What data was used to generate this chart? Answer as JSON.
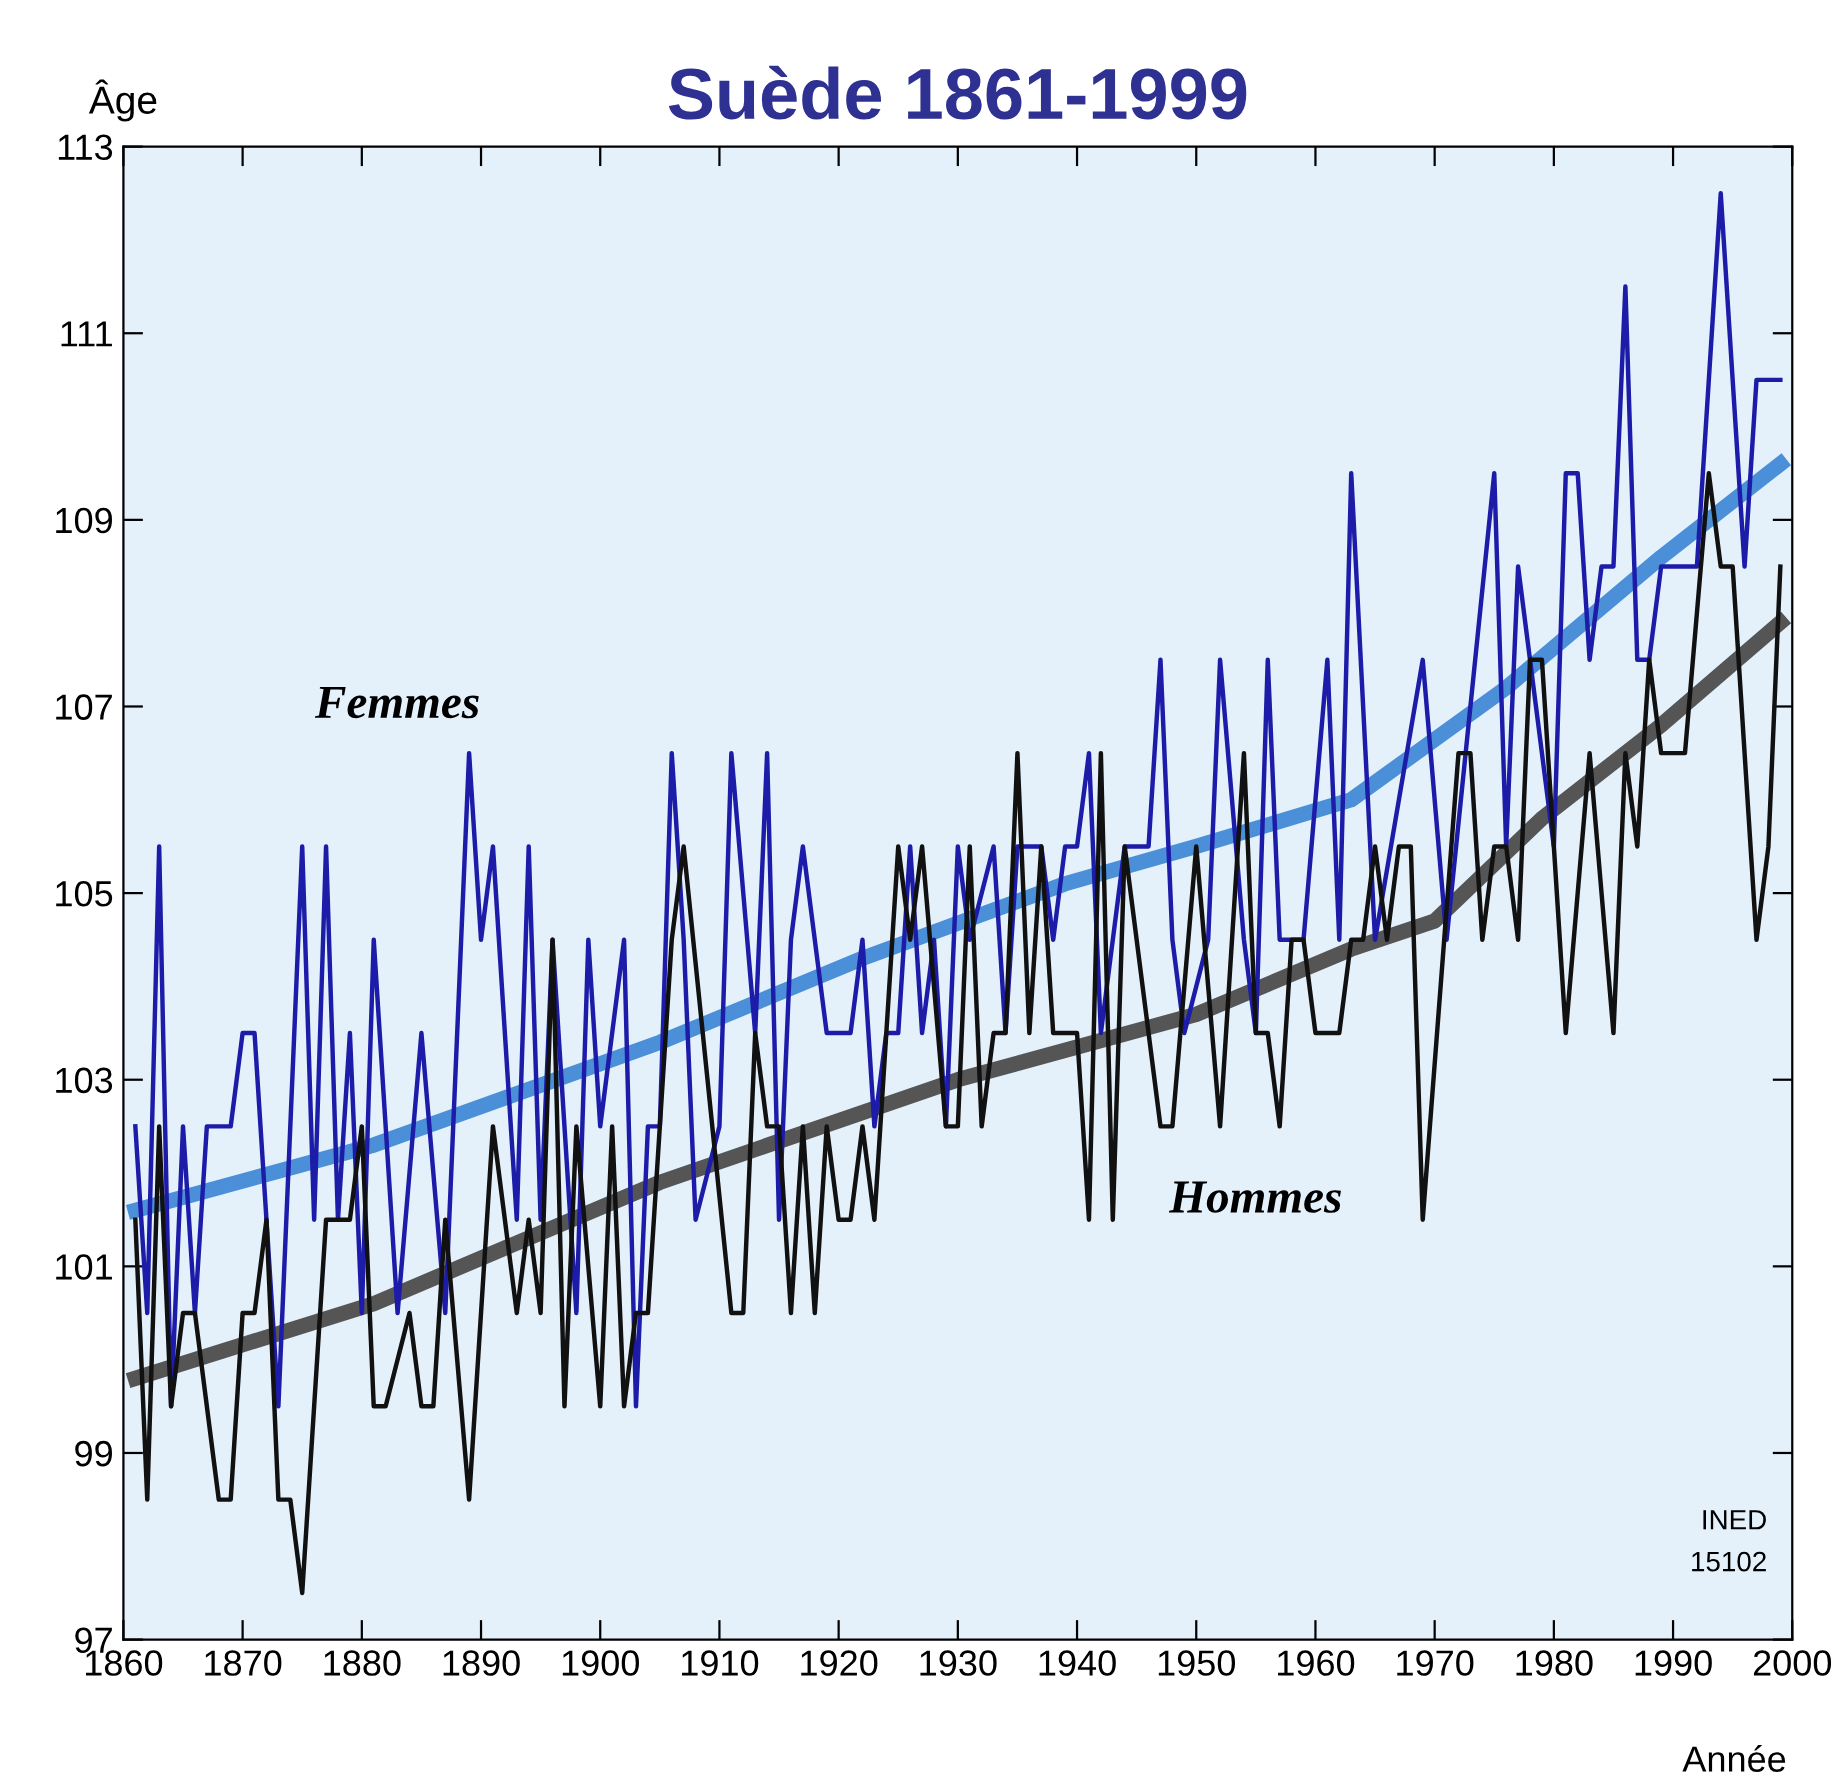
{
  "chart_data": {
    "type": "line",
    "title": "Suède 1861-1999",
    "ylabel": "Âge",
    "xlabel": "Année",
    "annotations": [
      "INED",
      "15102"
    ],
    "xlim": [
      1860,
      2000
    ],
    "xticks": [
      1860,
      1870,
      1880,
      1890,
      1900,
      1910,
      1920,
      1930,
      1940,
      1950,
      1960,
      1970,
      1980,
      1990,
      2000
    ],
    "ylim": [
      97,
      113
    ],
    "yticks": [
      97,
      99,
      101,
      103,
      105,
      107,
      109,
      111,
      113
    ],
    "grid": false,
    "legend": false,
    "marker": "none",
    "line_style": "solid",
    "series": [
      {
        "name": "Femmes",
        "color": "#1c1ca8",
        "x": [
          1861,
          1862,
          1863,
          1864,
          1865,
          1866,
          1867,
          1869,
          1870,
          1871,
          1873,
          1875,
          1876,
          1877,
          1878,
          1879,
          1880,
          1881,
          1883,
          1885,
          1887,
          1889,
          1890,
          1891,
          1893,
          1894,
          1895,
          1896,
          1898,
          1899,
          1900,
          1902,
          1903,
          1904,
          1905,
          1906,
          1907,
          1908,
          1910,
          1911,
          1913,
          1914,
          1915,
          1916,
          1917,
          1919,
          1921,
          1922,
          1923,
          1924,
          1925,
          1926,
          1927,
          1928,
          1929,
          1930,
          1931,
          1933,
          1934,
          1935,
          1937,
          1938,
          1939,
          1940,
          1941,
          1942,
          1944,
          1946,
          1947,
          1948,
          1949,
          1951,
          1952,
          1954,
          1955,
          1956,
          1957,
          1959,
          1961,
          1962,
          1963,
          1965,
          1969,
          1971,
          1975,
          1976,
          1977,
          1980,
          1981,
          1982,
          1983,
          1984,
          1985,
          1986,
          1987,
          1988,
          1989,
          1992,
          1994,
          1996,
          1997,
          1999
        ],
        "values": [
          102.5,
          100.5,
          105.5,
          99.5,
          102.5,
          100.5,
          102.5,
          102.5,
          103.5,
          103.5,
          99.5,
          105.5,
          101.5,
          105.5,
          101.5,
          103.5,
          100.5,
          104.5,
          100.5,
          103.5,
          100.5,
          106.5,
          104.5,
          105.5,
          101.5,
          105.5,
          101.5,
          104.5,
          100.5,
          104.5,
          102.5,
          104.5,
          99.5,
          102.5,
          102.5,
          106.5,
          104.5,
          101.5,
          102.5,
          106.5,
          103.5,
          106.5,
          101.5,
          104.5,
          105.5,
          103.5,
          103.5,
          104.5,
          102.5,
          103.5,
          103.5,
          105.5,
          103.5,
          104.5,
          102.5,
          105.5,
          104.5,
          105.5,
          103.5,
          105.5,
          105.5,
          104.5,
          105.5,
          105.5,
          106.5,
          103.5,
          105.5,
          105.5,
          107.5,
          104.5,
          103.5,
          104.5,
          107.5,
          104.5,
          103.5,
          107.5,
          104.5,
          104.5,
          107.5,
          104.5,
          109.5,
          104.5,
          107.5,
          104.5,
          109.5,
          105.5,
          108.5,
          105.5,
          109.5,
          109.5,
          107.5,
          108.5,
          108.5,
          111.5,
          107.5,
          107.5,
          108.5,
          108.5,
          112.5,
          108.5,
          110.5,
          110.5
        ]
      },
      {
        "name": "Hommes",
        "color": "#111111",
        "x": [
          1861,
          1862,
          1863,
          1864,
          1865,
          1866,
          1868,
          1869,
          1870,
          1871,
          1872,
          1873,
          1874,
          1875,
          1877,
          1879,
          1880,
          1881,
          1882,
          1884,
          1885,
          1886,
          1887,
          1889,
          1891,
          1893,
          1894,
          1895,
          1896,
          1897,
          1898,
          1900,
          1901,
          1902,
          1903,
          1904,
          1906,
          1907,
          1911,
          1912,
          1913,
          1914,
          1915,
          1916,
          1917,
          1918,
          1919,
          1920,
          1921,
          1922,
          1923,
          1925,
          1926,
          1927,
          1929,
          1930,
          1931,
          1932,
          1933,
          1934,
          1935,
          1936,
          1937,
          1938,
          1940,
          1941,
          1942,
          1943,
          1944,
          1947,
          1948,
          1950,
          1952,
          1954,
          1955,
          1956,
          1957,
          1958,
          1959,
          1960,
          1962,
          1963,
          1964,
          1965,
          1966,
          1967,
          1968,
          1969,
          1972,
          1973,
          1974,
          1975,
          1976,
          1977,
          1978,
          1979,
          1981,
          1983,
          1985,
          1986,
          1987,
          1988,
          1989,
          1991,
          1993,
          1994,
          1995,
          1997,
          1998,
          1999
        ],
        "values": [
          101.5,
          98.5,
          102.5,
          99.5,
          100.5,
          100.5,
          98.5,
          98.5,
          100.5,
          100.5,
          101.5,
          98.5,
          98.5,
          97.5,
          101.5,
          101.5,
          102.5,
          99.5,
          99.5,
          100.5,
          99.5,
          99.5,
          101.5,
          98.5,
          102.5,
          100.5,
          101.5,
          100.5,
          104.5,
          99.5,
          102.5,
          99.5,
          102.5,
          99.5,
          100.5,
          100.5,
          104.5,
          105.5,
          100.5,
          100.5,
          103.5,
          102.5,
          102.5,
          100.5,
          102.5,
          100.5,
          102.5,
          101.5,
          101.5,
          102.5,
          101.5,
          105.5,
          104.5,
          105.5,
          102.5,
          102.5,
          105.5,
          102.5,
          103.5,
          103.5,
          106.5,
          103.5,
          105.5,
          103.5,
          103.5,
          101.5,
          106.5,
          101.5,
          105.5,
          102.5,
          102.5,
          105.5,
          102.5,
          106.5,
          103.5,
          103.5,
          102.5,
          104.5,
          104.5,
          103.5,
          103.5,
          104.5,
          104.5,
          105.5,
          104.5,
          105.5,
          105.5,
          101.5,
          106.5,
          106.5,
          104.5,
          105.5,
          105.5,
          104.5,
          107.5,
          107.5,
          103.5,
          106.5,
          103.5,
          106.5,
          105.5,
          107.5,
          106.5,
          106.5,
          109.5,
          108.5,
          108.5,
          104.5,
          105.5,
          108.5
        ]
      },
      {
        "color": "#4a8fd8",
        "x": [
          1861,
          1881,
          1905,
          1922,
          1939,
          1950,
          1963,
          1976,
          1989,
          1999
        ],
        "values": [
          101.6,
          102.3,
          103.4,
          104.3,
          105.1,
          105.5,
          106.0,
          107.2,
          108.6,
          109.6
        ]
      },
      {
        "color": "#555555",
        "x": [
          1861,
          1881,
          1905,
          1930,
          1950,
          1963,
          1970,
          1979,
          1989,
          1999
        ],
        "values": [
          99.8,
          100.6,
          101.9,
          103.0,
          103.7,
          104.4,
          104.7,
          105.8,
          106.8,
          107.9
        ]
      }
    ]
  }
}
